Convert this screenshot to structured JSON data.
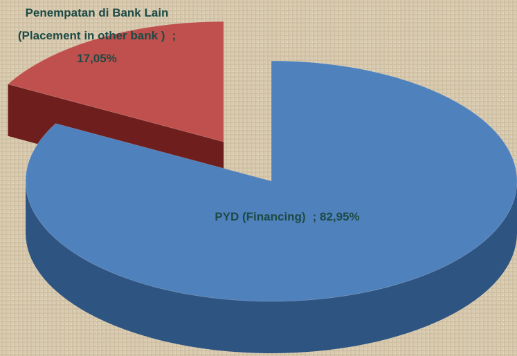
{
  "chart_data": {
    "type": "pie",
    "categories": [
      "PYD (Financing)",
      "Penempatan di Bank Lain (Placement in other bank )"
    ],
    "values": [
      82.95,
      17.05
    ],
    "value_labels": [
      "; 82,95%",
      "; 17,05%"
    ],
    "colors": [
      "#4f81bd",
      "#c0504d"
    ],
    "side_colors": [
      "#2e5482",
      "#6e1e1c"
    ],
    "exploded": [
      false,
      true
    ]
  }
}
